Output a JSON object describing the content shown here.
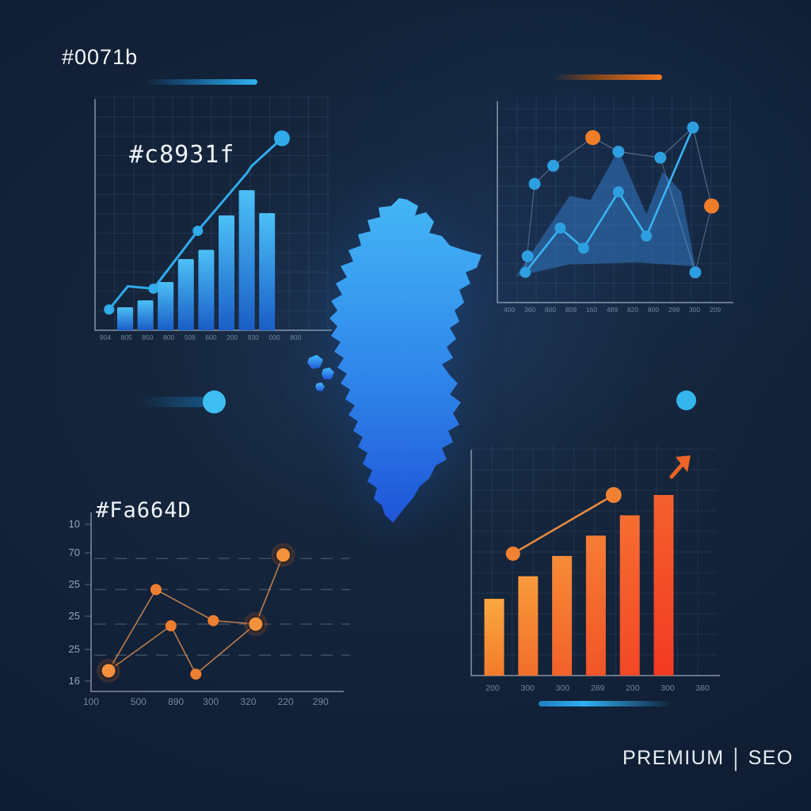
{
  "page": {
    "title_hex": "#0071b",
    "chart1_hex": "#c8931f",
    "chart3_hex": "#Fa664D",
    "brand": {
      "left": "PREMIUM",
      "separator": "|",
      "right": "SEO"
    }
  },
  "colors": {
    "background": "#101f35",
    "blue_accent": "#2fb0f0",
    "blue_bar_top": "#4cc0f7",
    "blue_bar_bottom": "#1a5ec6",
    "blue_line": "#31abe9",
    "area_blue": "#337fd0",
    "orange_accent": "#f0832f",
    "orange_bar_top": "#f9a83f",
    "orange_bar_hot": "#f33a24",
    "map_top": "#44b6f6",
    "map_bottom": "#1f55d8",
    "axis": "#c9d6e3",
    "tick_text": "#8499b2",
    "text": "#eef3f9"
  },
  "chart_data": [
    {
      "id": "tl",
      "type": "bar",
      "title": "#c8931f",
      "categories": [
        "904",
        "805",
        "850",
        "800",
        "508",
        "600",
        "200",
        "930",
        "000",
        "800"
      ],
      "values": [
        10,
        13,
        21,
        31,
        35,
        50,
        61,
        51
      ],
      "ylim": [
        0,
        100
      ],
      "grid": true,
      "line": {
        "points": [
          [
            6,
            9
          ],
          [
            14,
            19
          ],
          [
            25,
            18
          ],
          [
            44,
            43
          ],
          [
            65,
            68
          ],
          [
            67,
            71
          ],
          [
            80,
            83
          ]
        ],
        "dot_indices": [
          0,
          2,
          3,
          6
        ],
        "large_end_dot": true
      }
    },
    {
      "id": "tr",
      "type": "area",
      "categories": [
        "400",
        "360",
        "800",
        "809",
        "160",
        "489",
        "820",
        "800",
        "299",
        "300",
        "209"
      ],
      "ylim": [
        0,
        100
      ],
      "grid": true,
      "area_points": [
        [
          8,
          13
        ],
        [
          31,
          53
        ],
        [
          40,
          51
        ],
        [
          52,
          76
        ],
        [
          64,
          44
        ],
        [
          71,
          65
        ],
        [
          79,
          55
        ],
        [
          85,
          18
        ],
        [
          60,
          20
        ],
        [
          31,
          19
        ]
      ],
      "upper_series": [
        {
          "x": 16,
          "v": 59,
          "color": "blue"
        },
        {
          "x": 24,
          "v": 68,
          "color": "blue"
        },
        {
          "x": 41,
          "v": 82,
          "color": "orange"
        },
        {
          "x": 52,
          "v": 75,
          "color": "blue"
        },
        {
          "x": 70,
          "v": 72,
          "color": "blue"
        },
        {
          "x": 84,
          "v": 87,
          "color": "blue"
        },
        {
          "x": 92,
          "v": 48,
          "color": "orange"
        }
      ],
      "lower_series": [
        [
          12,
          15
        ],
        [
          27,
          37
        ],
        [
          37,
          27
        ],
        [
          52,
          55
        ],
        [
          64,
          33
        ],
        [
          84,
          87
        ]
      ],
      "extra_dots": [
        [
          13,
          23
        ],
        [
          85,
          15
        ]
      ],
      "connector_segments": [
        [
          [
            12,
            15
          ],
          [
            16,
            59
          ]
        ],
        [
          [
            85,
            15
          ],
          [
            70,
            72
          ]
        ],
        [
          [
            85,
            15
          ],
          [
            92,
            48
          ]
        ]
      ]
    },
    {
      "id": "bl",
      "type": "line",
      "title": "#Fa664D",
      "y_tick_labels": [
        "10",
        "70",
        "25",
        "25",
        "25",
        "16"
      ],
      "categories": [
        "100",
        "500",
        "890",
        "300",
        "320",
        "220",
        "290"
      ],
      "category_x_pct": [
        0,
        19,
        34,
        48,
        63,
        78,
        92
      ],
      "ylim": [
        0,
        100
      ],
      "dashed_levels": [
        77,
        59,
        39,
        21
      ],
      "segments": [
        [
          [
            7,
            12
          ],
          [
            26,
            59
          ]
        ],
        [
          [
            7,
            12
          ],
          [
            32,
            38
          ]
        ],
        [
          [
            26,
            59
          ],
          [
            49,
            41
          ]
        ],
        [
          [
            32,
            38
          ],
          [
            42,
            10
          ]
        ],
        [
          [
            42,
            10
          ],
          [
            66,
            39
          ]
        ],
        [
          [
            49,
            41
          ],
          [
            66,
            39
          ]
        ],
        [
          [
            66,
            39
          ],
          [
            77,
            79
          ]
        ]
      ],
      "points": [
        {
          "x": 7,
          "v": 12,
          "size": "large"
        },
        {
          "x": 26,
          "v": 59,
          "size": "small"
        },
        {
          "x": 32,
          "v": 38,
          "size": "small"
        },
        {
          "x": 42,
          "v": 10,
          "size": "small"
        },
        {
          "x": 49,
          "v": 41,
          "size": "small"
        },
        {
          "x": 66,
          "v": 39,
          "size": "large"
        },
        {
          "x": 77,
          "v": 79,
          "size": "large"
        }
      ]
    },
    {
      "id": "br",
      "type": "bar",
      "categories": [
        "200",
        "300",
        "300",
        "289",
        "200",
        "300",
        "380"
      ],
      "values": [
        34,
        44,
        53,
        62,
        71,
        80
      ],
      "ylim": [
        0,
        100
      ],
      "grid": true,
      "line": {
        "points": [
          [
            17,
            54
          ],
          [
            58,
            80
          ]
        ],
        "dot_indices": [
          0,
          1
        ]
      },
      "trend_arrow": true
    }
  ]
}
